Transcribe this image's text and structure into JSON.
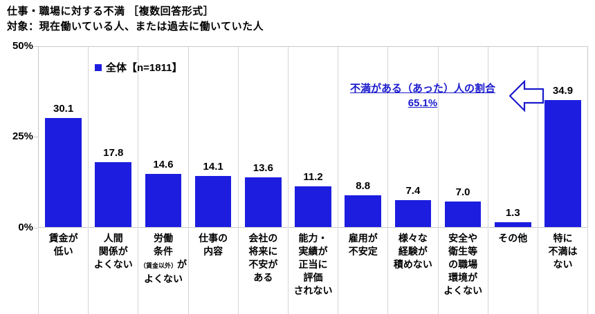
{
  "header": {
    "title": "仕事・職場に対する不満 ［複数回答形式］",
    "subtitle": "対象：現在働いている人、または過去に働いていた人"
  },
  "legend": {
    "label": "全体【n=1811】"
  },
  "annotation": {
    "title": "不満がある（あった）人の割合",
    "value": "65.1%"
  },
  "colors": {
    "bar": "#1D1DE0",
    "annotation_text": "#1A1ACD",
    "arrow_stroke": "#1A1ACD",
    "grid": "#C8C8C8"
  },
  "chart_data": {
    "type": "bar",
    "title": "仕事・職場に対する不満 ［複数回答形式］",
    "subtitle": "対象：現在働いている人、または過去に働いていた人",
    "legend": "全体【n=1811】",
    "legend_position": "top-left inside plot",
    "xlabel": "",
    "ylabel": "",
    "ylim": [
      0,
      50
    ],
    "grid": "vertical category separators only, no horizontal gridlines",
    "yticks": [
      {
        "label": "50%",
        "value": 50
      },
      {
        "label": "25%",
        "value": 25
      },
      {
        "label": "0%",
        "value": 0
      }
    ],
    "categories": [
      "賃金が低い",
      "人間関係がよくない",
      "労働条件（賃金以外）がよくない",
      "仕事の内容",
      "会社の将来に不安がある",
      "能力・実績が正当に評価されない",
      "雇用が不安定",
      "様々な経験が積めない",
      "安全や衛生等の職場環境がよくない",
      "その他",
      "特に不満はない"
    ],
    "values": [
      30.1,
      17.8,
      14.6,
      14.1,
      13.6,
      11.2,
      8.8,
      7.4,
      7.0,
      1.3,
      34.9
    ],
    "bars": [
      {
        "value": 30.1,
        "label_lines": [
          [
            "賃金が"
          ],
          [
            "低い"
          ]
        ]
      },
      {
        "value": 17.8,
        "label_lines": [
          [
            "人間"
          ],
          [
            "関係が"
          ],
          [
            "よくない"
          ]
        ]
      },
      {
        "value": 14.6,
        "label_lines": [
          [
            "労働"
          ],
          [
            "条件"
          ],
          [
            {
              "t": "（賃金以外）",
              "small": true
            },
            {
              "t": "が"
            }
          ],
          [
            "よくない"
          ]
        ]
      },
      {
        "value": 14.1,
        "label_lines": [
          [
            "仕事の"
          ],
          [
            "内容"
          ]
        ]
      },
      {
        "value": 13.6,
        "label_lines": [
          [
            "会社の"
          ],
          [
            "将来に"
          ],
          [
            "不安が"
          ],
          [
            "ある"
          ]
        ]
      },
      {
        "value": 11.2,
        "label_lines": [
          [
            "能力・"
          ],
          [
            "実績が"
          ],
          [
            "正当に"
          ],
          [
            "評価"
          ],
          [
            "されない"
          ]
        ]
      },
      {
        "value": 8.8,
        "label_lines": [
          [
            "雇用が"
          ],
          [
            "不安定"
          ]
        ]
      },
      {
        "value": 7.4,
        "label_lines": [
          [
            "様々な"
          ],
          [
            "経験が"
          ],
          [
            "積めない"
          ]
        ]
      },
      {
        "value": 7.0,
        "label_lines": [
          [
            "安全や"
          ],
          [
            "衛生等"
          ],
          [
            "の職場"
          ],
          [
            "環境が"
          ],
          [
            "よくない"
          ]
        ]
      },
      {
        "value": 1.3,
        "label_lines": [
          [
            "その他"
          ]
        ]
      },
      {
        "value": 34.9,
        "label_lines": [
          [
            "特に"
          ],
          [
            "不満は"
          ],
          [
            "ない"
          ]
        ]
      }
    ],
    "annotation": {
      "text": "不満がある（あった）人の割合",
      "value": "65.1%"
    }
  }
}
